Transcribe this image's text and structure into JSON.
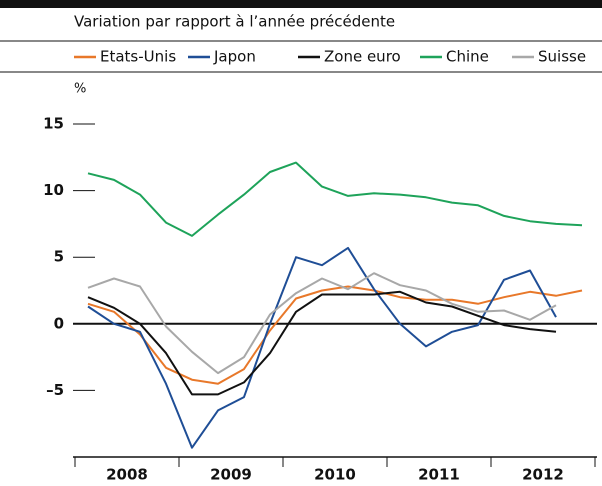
{
  "chart_data": {
    "type": "line",
    "subtitle": "Variation par rapport à l’année précédente",
    "y_unit": "%",
    "categories": [
      null,
      null,
      null,
      null,
      null,
      null,
      null,
      null,
      null,
      null,
      null,
      null,
      null,
      null,
      null,
      null,
      null,
      null,
      null,
      null
    ],
    "year_labels": [
      "2008",
      "2009",
      "2010",
      "2011",
      "2012"
    ],
    "ylim": [
      -10,
      15
    ],
    "yticks": [
      {
        "value": -5,
        "label": "–5"
      },
      0,
      5,
      10,
      15
    ],
    "series": [
      {
        "name": "Etats-Unis",
        "color": "#e8782a",
        "values": [
          1.5,
          0.9,
          -0.8,
          -3.3,
          -4.2,
          -4.5,
          -3.4,
          -0.5,
          1.9,
          2.5,
          2.8,
          2.5,
          2.0,
          1.8,
          1.8,
          1.5,
          2.0,
          2.4,
          2.1,
          2.5
        ]
      },
      {
        "name": "Japon",
        "color": "#1f4e96",
        "values": [
          1.3,
          0,
          -0.6,
          -4.5,
          -9.3,
          -6.5,
          -5.5,
          0,
          5.0,
          4.4,
          5.7,
          2.6,
          0,
          -1.7,
          -0.6,
          -0.1,
          3.3,
          4.0,
          0.5,
          null
        ]
      },
      {
        "name": "Zone euro",
        "color": "#111111",
        "values": [
          2.0,
          1.2,
          0,
          -2.2,
          -5.3,
          -5.3,
          -4.4,
          -2.2,
          0.9,
          2.2,
          2.2,
          2.2,
          2.4,
          1.6,
          1.3,
          0.6,
          -0.1,
          -0.4,
          -0.6,
          null
        ]
      },
      {
        "name": "Chine",
        "color": "#1ea35a",
        "values": [
          11.3,
          10.8,
          9.7,
          7.6,
          6.6,
          8.2,
          9.7,
          11.4,
          12.1,
          10.3,
          9.6,
          9.8,
          9.7,
          9.5,
          9.1,
          8.9,
          8.1,
          7.7,
          7.5,
          7.4
        ]
      },
      {
        "name": "Suisse",
        "color": "#a8a8a8",
        "values": [
          2.7,
          3.4,
          2.8,
          -0.2,
          -2.1,
          -3.7,
          -2.5,
          0.7,
          2.3,
          3.4,
          2.6,
          3.8,
          2.9,
          2.5,
          1.5,
          0.9,
          1.0,
          0.3,
          1.4,
          null
        ]
      }
    ]
  }
}
